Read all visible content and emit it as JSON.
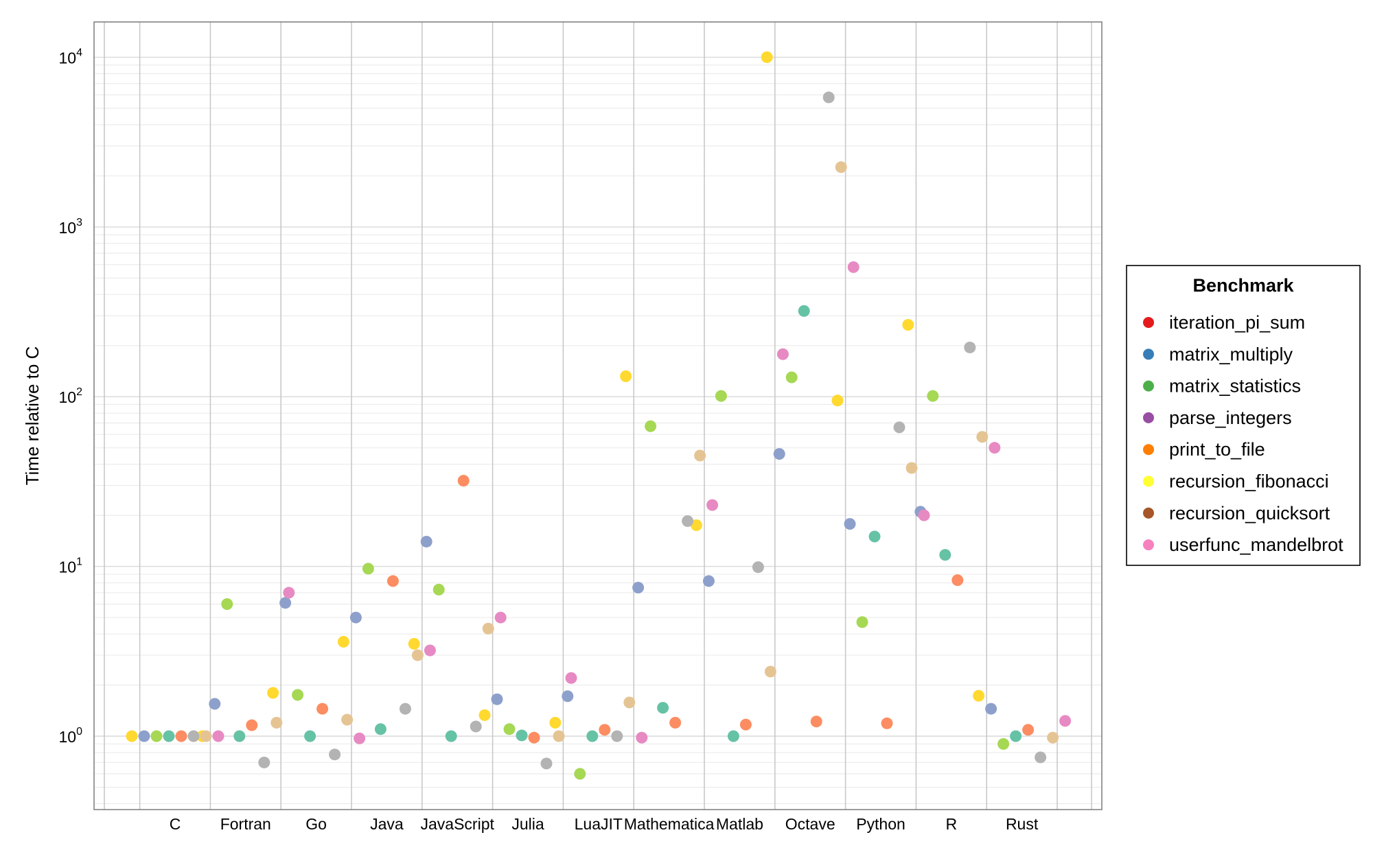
{
  "chart_data": {
    "type": "scatter",
    "title": "",
    "xlabel": "",
    "ylabel": "Time relative to C",
    "y_scale": "log10",
    "ylim": [
      0.37,
      17000
    ],
    "y_ticks": [
      {
        "value": 1,
        "base": "10",
        "exp": "0"
      },
      {
        "value": 10,
        "base": "10",
        "exp": "1"
      },
      {
        "value": 100,
        "base": "10",
        "exp": "2"
      },
      {
        "value": 1000,
        "base": "10",
        "exp": "3"
      },
      {
        "value": 10000,
        "base": "10",
        "exp": "4"
      }
    ],
    "grid": true,
    "legend": {
      "title": "Benchmark",
      "position": "right"
    },
    "categories": [
      "C",
      "Fortran",
      "Go",
      "Java",
      "JavaScript",
      "Julia",
      "LuaJIT",
      "Mathematica",
      "Matlab",
      "Octave",
      "Python",
      "R",
      "Rust"
    ],
    "series": [
      {
        "name": "iteration_pi_sum",
        "legend_color": "#e41a1c",
        "color": "#ffd92f",
        "values": [
          1.0,
          1.0,
          1.8,
          3.6,
          3.5,
          1.33,
          1.2,
          132,
          17.5,
          10000,
          95,
          265,
          1.73
        ]
      },
      {
        "name": "matrix_multiply",
        "legend_color": "#377eb8",
        "color": "#8da0cb",
        "values": [
          1.0,
          1.55,
          6.1,
          5.0,
          14.0,
          1.65,
          1.72,
          7.5,
          8.2,
          46,
          17.8,
          21,
          1.45
        ]
      },
      {
        "name": "matrix_statistics",
        "legend_color": "#4daf4a",
        "color": "#a6d854",
        "values": [
          1.0,
          6.0,
          1.75,
          9.7,
          7.3,
          1.1,
          0.6,
          67,
          101,
          130,
          4.7,
          101,
          0.9
        ]
      },
      {
        "name": "parse_integers",
        "legend_color": "#984ea3",
        "color": "#66c2a5",
        "values": [
          1.0,
          1.0,
          1.0,
          1.1,
          1.0,
          1.01,
          1.0,
          1.47,
          1.0,
          320,
          15,
          11.7,
          1.0
        ]
      },
      {
        "name": "print_to_file",
        "legend_color": "#ff7f00",
        "color": "#fc8d62",
        "values": [
          1.0,
          1.16,
          1.45,
          8.2,
          32,
          0.98,
          1.09,
          1.2,
          1.17,
          1.22,
          1.19,
          8.3,
          1.09
        ]
      },
      {
        "name": "recursion_fibonacci",
        "legend_color": "#ffff33",
        "color": "#b3b3b3",
        "values": [
          1.0,
          0.7,
          0.78,
          1.45,
          1.14,
          0.69,
          1.0,
          18.5,
          9.9,
          5800,
          66,
          195,
          0.75
        ]
      },
      {
        "name": "recursion_quicksort",
        "legend_color": "#a65628",
        "color": "#e5c494",
        "values": [
          1.0,
          1.2,
          1.25,
          3.0,
          4.3,
          1.0,
          1.58,
          45,
          2.4,
          2250,
          38,
          58,
          0.98
        ]
      },
      {
        "name": "userfunc_mandelbrot",
        "legend_color": "#f781bf",
        "color": "#e78ac3",
        "values": [
          1.0,
          7.0,
          0.97,
          3.2,
          5.0,
          2.2,
          0.98,
          23,
          178,
          580,
          20,
          50,
          1.23
        ]
      }
    ]
  }
}
